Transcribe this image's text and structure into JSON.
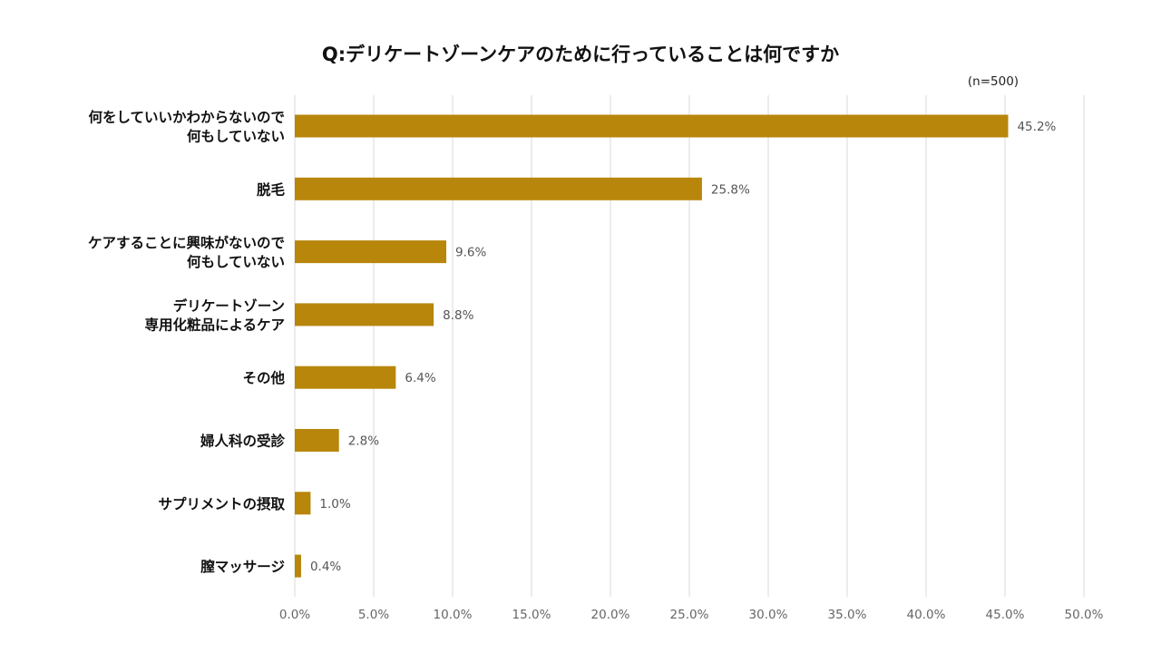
{
  "chart_data": {
    "type": "bar",
    "orientation": "horizontal",
    "title": "Q:デリケートゾーンケアのために行っていることは何ですか",
    "sample_size": "(n=500)",
    "categories": [
      [
        "何をしていいかわからないので",
        "何もしていない"
      ],
      [
        "脱毛"
      ],
      [
        "ケアすることに興味がないので",
        "何もしていない"
      ],
      [
        "デリケートゾーン",
        "専用化粧品によるケア"
      ],
      [
        "その他"
      ],
      [
        "婦人科の受診"
      ],
      [
        "サプリメントの摂取"
      ],
      [
        "膣マッサージ"
      ]
    ],
    "values": [
      45.2,
      25.8,
      9.6,
      8.8,
      6.4,
      2.8,
      1.0,
      0.4
    ],
    "value_labels": [
      "45.2%",
      "25.8%",
      "9.6%",
      "8.8%",
      "6.4%",
      "2.8%",
      "1.0%",
      "0.4%"
    ],
    "xlim": [
      0,
      50
    ],
    "x_ticks": [
      "0.0%",
      "5.0%",
      "10.0%",
      "15.0%",
      "20.0%",
      "25.0%",
      "30.0%",
      "35.0%",
      "40.0%",
      "45.0%",
      "50.0%"
    ],
    "grid": true,
    "bar_color": "#b8860b"
  }
}
